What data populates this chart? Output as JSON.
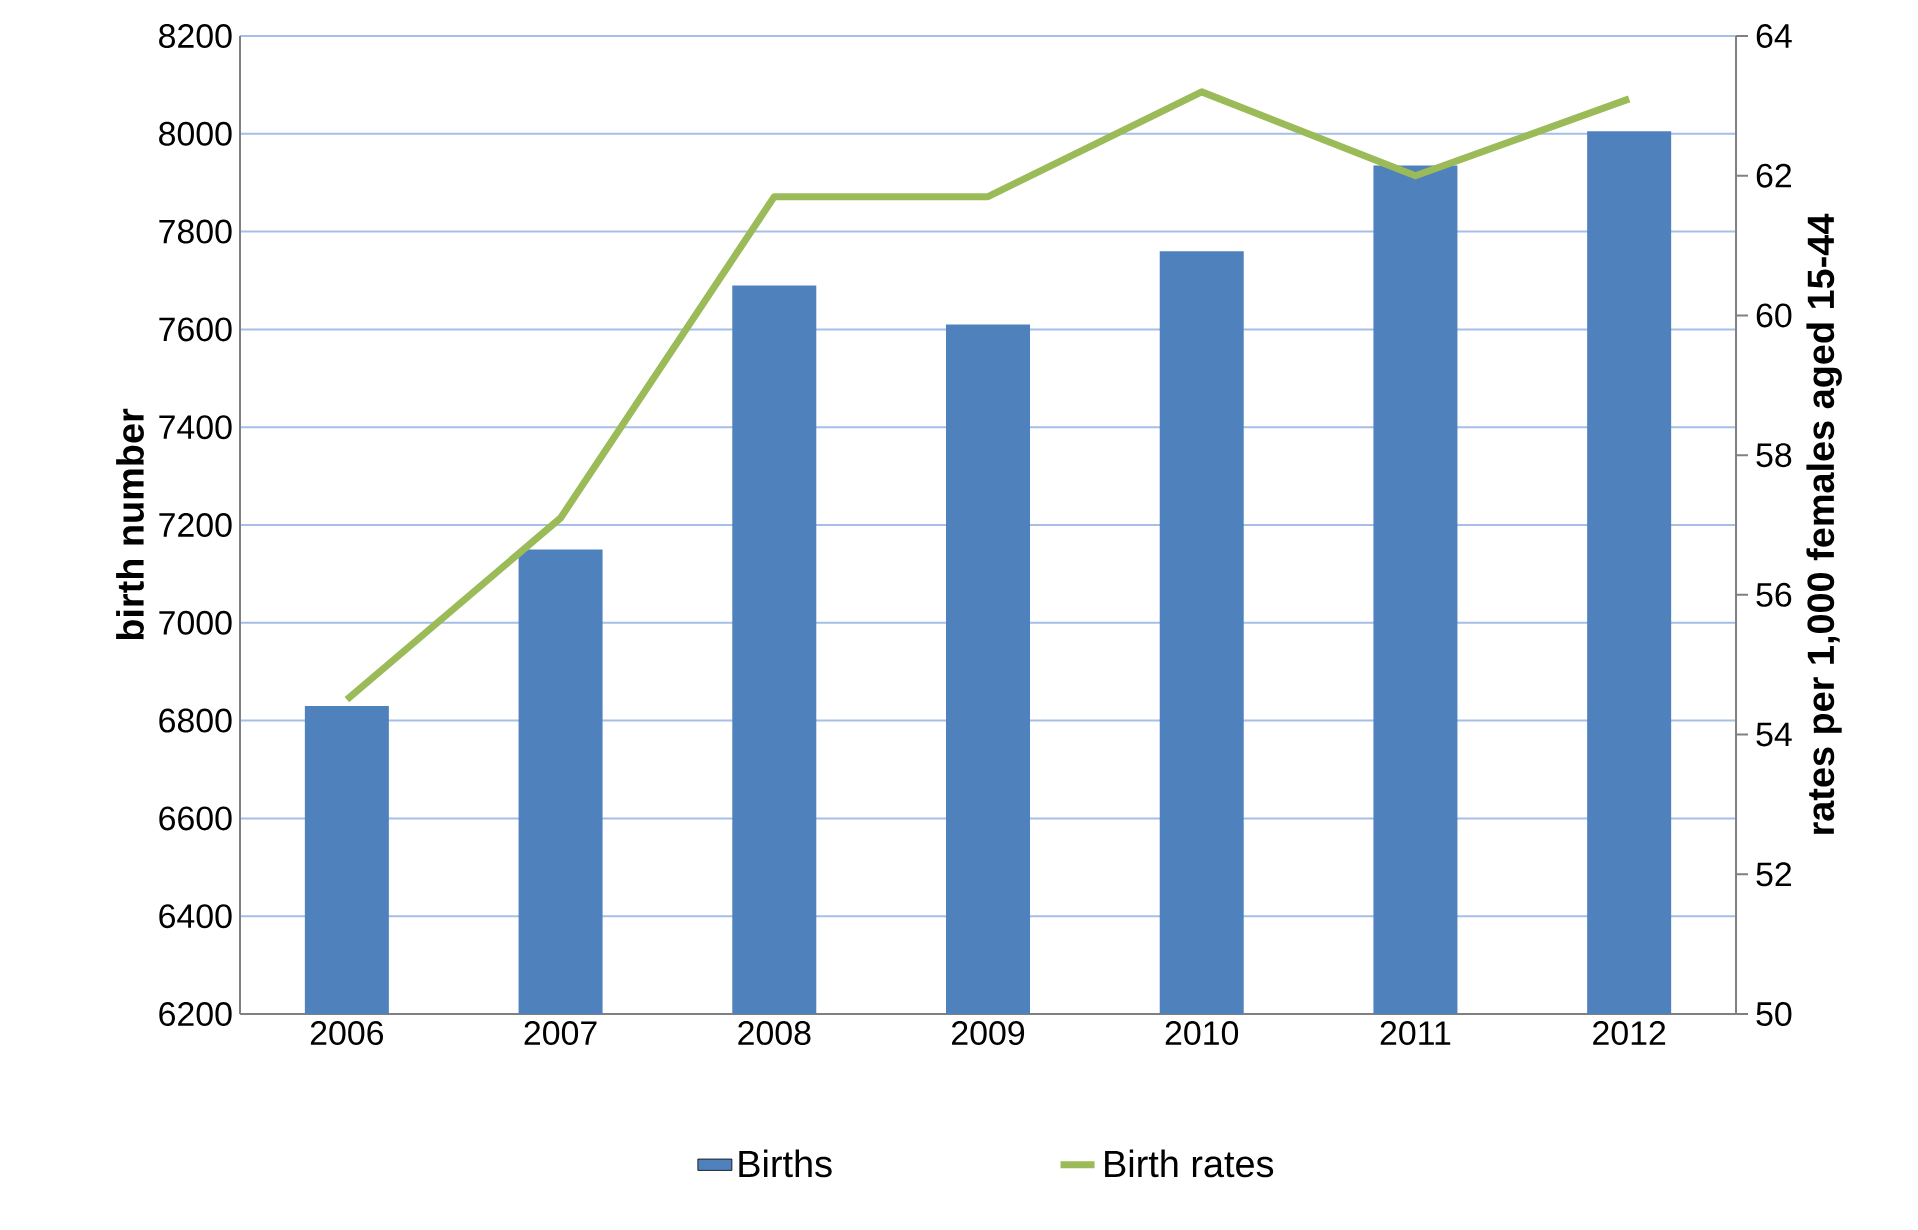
{
  "chart_data": {
    "type": "bar",
    "categories": [
      "2006",
      "2007",
      "2008",
      "2009",
      "2010",
      "2011",
      "2012"
    ],
    "series": [
      {
        "name": "Births",
        "color": "#4f81bd",
        "values": [
          6830,
          7150,
          7690,
          7610,
          7760,
          7935,
          8005
        ]
      },
      {
        "name": "Birth rates",
        "type": "line",
        "axis": "y2",
        "color": "#9bbb59",
        "values": [
          54.5,
          57.1,
          61.7,
          61.7,
          63.2,
          62.0,
          63.1
        ]
      }
    ],
    "ylabel": "birth number",
    "y2label": "rates per 1,000 females aged 15-44",
    "ylim": [
      6200,
      8200
    ],
    "yticks": [
      6200,
      6400,
      6600,
      6800,
      7000,
      7200,
      7400,
      7600,
      7800,
      8000,
      8200
    ],
    "y2lim": [
      50,
      64
    ],
    "y2ticks": [
      50,
      52,
      54,
      56,
      58,
      60,
      62,
      64
    ],
    "grid": "y",
    "legend": "bottom",
    "marker": "none",
    "line_style": "solid"
  }
}
